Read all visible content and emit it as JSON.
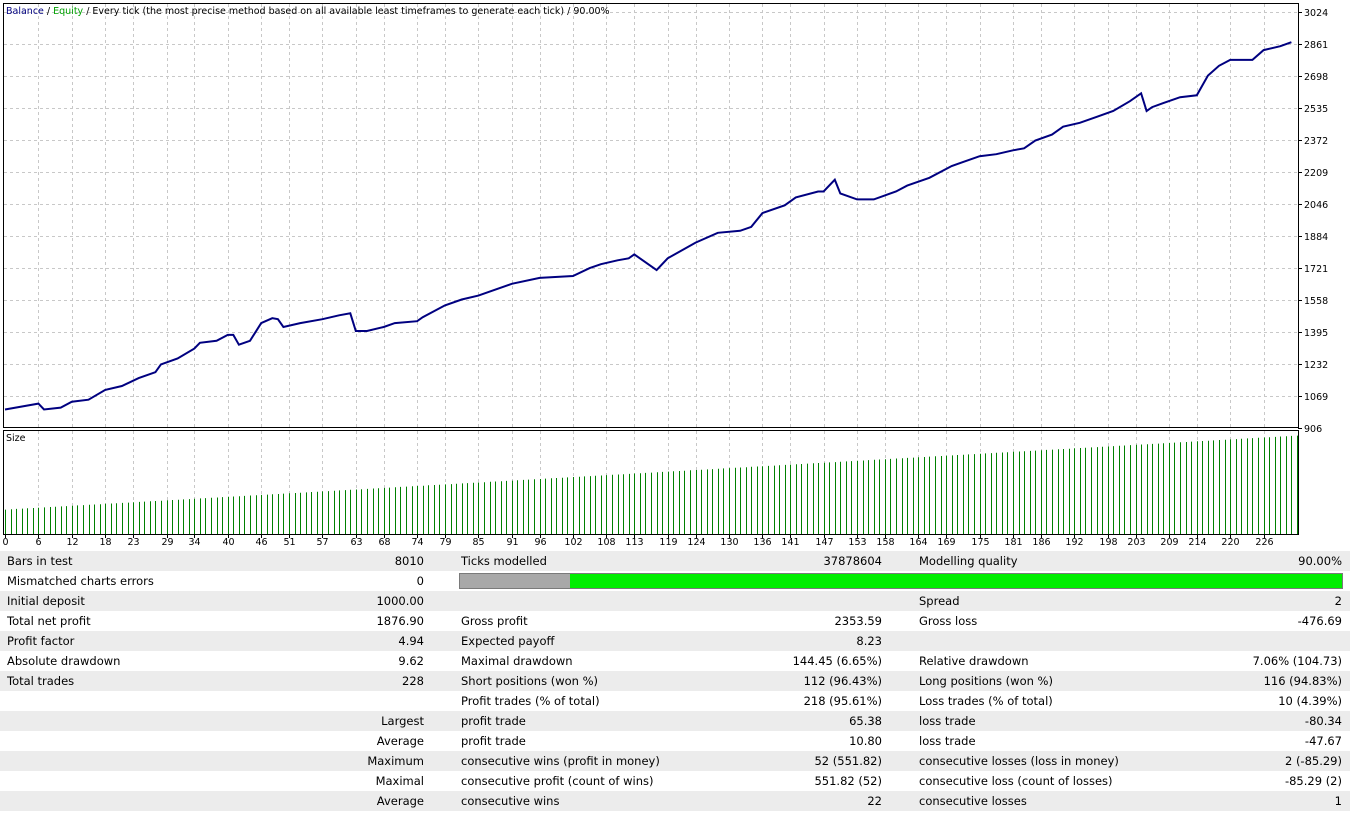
{
  "chart_data": [
    {
      "type": "line",
      "title": "",
      "header": {
        "balance_label": "Balance",
        "sep1": " / ",
        "equity_label": "Equity",
        "description": " / Every tick (the most precise method based on all available least timeframes to generate each tick)",
        "quality": " / 90.00%"
      },
      "colors": {
        "balance": "#000080",
        "equity": "#00a000",
        "grid": "#c8c8c8",
        "size_bars": "#008000"
      },
      "ylim": [
        906,
        3024
      ],
      "y_ticks": [
        906,
        1069,
        1232,
        1395,
        1558,
        1721,
        1884,
        2046,
        2209,
        2372,
        2535,
        2698,
        2861,
        3024
      ],
      "xlim": [
        0,
        232
      ],
      "grid": true,
      "series": [
        {
          "name": "Balance",
          "x": [
            0,
            6,
            7,
            10,
            12,
            15,
            18,
            21,
            24,
            27,
            28,
            31,
            34,
            35,
            38,
            40,
            41,
            42,
            44,
            46,
            48,
            49,
            50,
            53,
            57,
            60,
            62,
            63,
            65,
            68,
            70,
            74,
            75,
            79,
            82,
            85,
            88,
            91,
            96,
            102,
            105,
            107,
            110,
            112,
            113,
            117,
            119,
            124,
            128,
            132,
            134,
            136,
            140,
            142,
            146,
            147,
            149,
            150,
            153,
            156,
            158,
            160,
            162,
            164,
            166,
            170,
            172,
            175,
            178,
            181,
            183,
            185,
            188,
            190,
            193,
            196,
            199,
            202,
            204,
            205,
            206,
            208,
            211,
            214,
            216,
            218,
            220,
            224,
            226,
            229,
            231
          ],
          "values": [
            1000,
            1030,
            1000,
            1010,
            1040,
            1050,
            1100,
            1120,
            1160,
            1190,
            1230,
            1260,
            1310,
            1340,
            1350,
            1380,
            1380,
            1330,
            1350,
            1440,
            1465,
            1460,
            1420,
            1440,
            1460,
            1480,
            1490,
            1400,
            1400,
            1420,
            1440,
            1450,
            1470,
            1530,
            1560,
            1580,
            1610,
            1640,
            1670,
            1680,
            1720,
            1740,
            1760,
            1770,
            1790,
            1710,
            1770,
            1850,
            1900,
            1910,
            1930,
            2000,
            2040,
            2080,
            2110,
            2110,
            2170,
            2100,
            2070,
            2070,
            2090,
            2110,
            2140,
            2160,
            2180,
            2240,
            2260,
            2290,
            2300,
            2320,
            2330,
            2370,
            2400,
            2440,
            2460,
            2490,
            2520,
            2570,
            2610,
            2520,
            2540,
            2560,
            2590,
            2600,
            2700,
            2750,
            2780,
            2780,
            2830,
            2850,
            2870
          ]
        }
      ]
    },
    {
      "type": "bar",
      "title": "Size",
      "x_ticks": [
        "0",
        "6",
        "12",
        "18",
        "23",
        "29",
        "34",
        "40",
        "46",
        "51",
        "57",
        "63",
        "68",
        "74",
        "79",
        "85",
        "91",
        "96",
        "102",
        "108",
        "113",
        "119",
        "124",
        "130",
        "136",
        "141",
        "147",
        "153",
        "158",
        "164",
        "169",
        "175",
        "181",
        "186",
        "192",
        "198",
        "203",
        "209",
        "214",
        "220",
        "226"
      ],
      "bar_count": 233,
      "values_start": 0.64,
      "values_end": 2.58,
      "ylim": [
        0,
        2.7
      ]
    }
  ],
  "report": {
    "rows": [
      {
        "shade": true,
        "c1l": "Bars in test",
        "c1v": "8010",
        "c2l": "Ticks modelled",
        "c2v": "37878604",
        "c3l": "Modelling quality",
        "c3v": "90.00%"
      },
      {
        "shade": false,
        "c1l": "Mismatched charts errors",
        "c1v": "0",
        "c2l": "",
        "c2v": "",
        "c3l": "",
        "c3v": "",
        "qbar": true
      },
      {
        "shade": true,
        "c1l": "Initial deposit",
        "c1v": "1000.00",
        "c2l": "",
        "c2v": "",
        "c3l": "Spread",
        "c3v": "2"
      },
      {
        "shade": false,
        "c1l": "Total net profit",
        "c1v": "1876.90",
        "c2l": "Gross profit",
        "c2v": "2353.59",
        "c3l": "Gross loss",
        "c3v": "-476.69"
      },
      {
        "shade": true,
        "c1l": "Profit factor",
        "c1v": "4.94",
        "c2l": "Expected payoff",
        "c2v": "8.23",
        "c3l": "",
        "c3v": ""
      },
      {
        "shade": false,
        "c1l": "Absolute drawdown",
        "c1v": "9.62",
        "c2l": "Maximal drawdown",
        "c2v": "144.45 (6.65%)",
        "c3l": "Relative drawdown",
        "c3v": "7.06% (104.73)"
      },
      {
        "shade": true,
        "c1l": "Total trades",
        "c1v": "228",
        "c2l": "Short positions (won %)",
        "c2v": "112 (96.43%)",
        "c3l": "Long positions (won %)",
        "c3v": "116 (94.83%)"
      },
      {
        "shade": false,
        "c1l": "",
        "c1v": "",
        "c2l": "Profit trades (% of total)",
        "c2v": "218 (95.61%)",
        "c3l": "Loss trades (% of total)",
        "c3v": "10 (4.39%)"
      },
      {
        "shade": true,
        "c1l": "",
        "c1v": "Largest",
        "c2l": "profit trade",
        "c2v": "65.38",
        "c3l": "loss trade",
        "c3v": "-80.34"
      },
      {
        "shade": false,
        "c1l": "",
        "c1v": "Average",
        "c2l": "profit trade",
        "c2v": "10.80",
        "c3l": "loss trade",
        "c3v": "-47.67"
      },
      {
        "shade": true,
        "c1l": "",
        "c1v": "Maximum",
        "c2l": "consecutive wins (profit in money)",
        "c2v": "52 (551.82)",
        "c3l": "consecutive losses (loss in money)",
        "c3v": "2 (-85.29)"
      },
      {
        "shade": false,
        "c1l": "",
        "c1v": "Maximal",
        "c2l": "consecutive profit (count of wins)",
        "c2v": "551.82 (52)",
        "c3l": "consecutive loss (count of losses)",
        "c3v": "-85.29 (2)"
      },
      {
        "shade": true,
        "c1l": "",
        "c1v": "Average",
        "c2l": "consecutive wins",
        "c2v": "22",
        "c3l": "consecutive losses",
        "c3v": "1"
      }
    ],
    "quality_bar": {
      "grey_fraction": 0.125,
      "green_fraction": 0.875
    }
  }
}
